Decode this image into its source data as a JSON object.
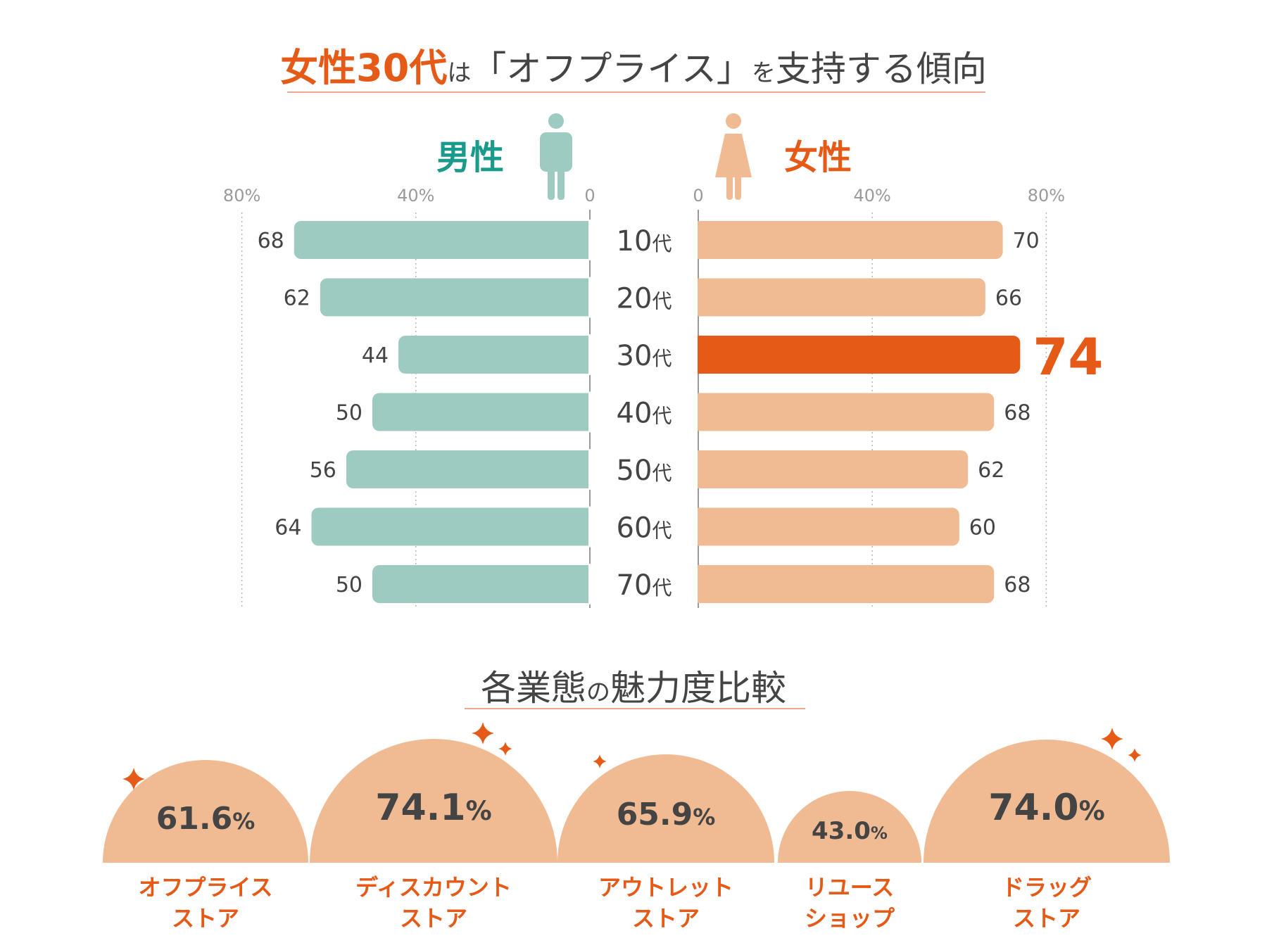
{
  "title": {
    "emphasis": "女性30代",
    "particle1": "は",
    "middle": "「オフプライス」",
    "particle2": "を",
    "rest": "支持する傾向"
  },
  "colors": {
    "male": "#9dcbc2",
    "female": "#f0bb93",
    "highlight": "#e55a16",
    "male_text": "#1a9a8a",
    "female_text": "#e55a16",
    "text": "#444444",
    "axis": "#9a9a9a",
    "semicircle": "#f0bb93"
  },
  "chart_data": {
    "type": "bar",
    "orientation": "horizontal-butterfly",
    "categories": [
      "10代",
      "20代",
      "30代",
      "40代",
      "50代",
      "60代",
      "70代"
    ],
    "category_num": [
      "10",
      "20",
      "30",
      "40",
      "50",
      "60",
      "70"
    ],
    "category_suffix": "代",
    "series": [
      {
        "name": "男性",
        "values": [
          68,
          62,
          44,
          50,
          56,
          64,
          50
        ]
      },
      {
        "name": "女性",
        "values": [
          70,
          66,
          74,
          68,
          62,
          60,
          68
        ]
      }
    ],
    "highlight": {
      "series": "女性",
      "category": "30代"
    },
    "male_ticks": [
      "80%",
      "40%",
      "0"
    ],
    "female_ticks": [
      "0",
      "40%",
      "80%"
    ],
    "tick_values": [
      80,
      40,
      0
    ],
    "xlim": [
      0,
      80
    ]
  },
  "section2": {
    "title_part1": "各業態",
    "title_particle": "の",
    "title_part2": "魅力度比較",
    "chart_data": {
      "type": "bar",
      "shape": "semicircle",
      "categories": [
        "オフプライス ストア",
        "ディスカウント ストア",
        "アウトレット ストア",
        "リユース ショップ",
        "ドラッグ ストア"
      ],
      "values": [
        61.6,
        74.1,
        65.9,
        43.0,
        74.0
      ],
      "value_labels": [
        "61.6",
        "74.1",
        "65.9",
        "43.0",
        "74.0"
      ],
      "unit": "%",
      "label_lines": [
        [
          "オフプライス",
          "ストア"
        ],
        [
          "ディスカウント",
          "ストア"
        ],
        [
          "アウトレット",
          "ストア"
        ],
        [
          "リユース",
          "ショップ"
        ],
        [
          "ドラッグ",
          "ストア"
        ]
      ]
    }
  }
}
